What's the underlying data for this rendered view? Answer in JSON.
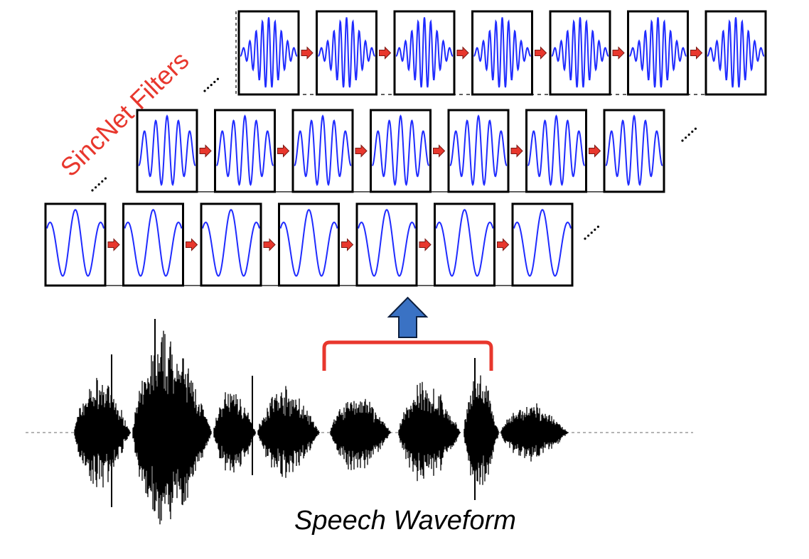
{
  "diagram": {
    "side_title": "SincNet Filters",
    "caption": "Speech Waveform",
    "ellipsis_glyph": "....",
    "colors": {
      "filter_line": "#1f2bff",
      "arrow_red": "#e8372d",
      "bracket_red": "#e8372d",
      "up_arrow_fill": "#3a72c4",
      "waveform": "#000000",
      "frame_border": "#000000"
    },
    "rows": [
      {
        "name": "row-low-frequency",
        "filter_count": 7,
        "frequency": "low"
      },
      {
        "name": "row-mid-frequency",
        "filter_count": 7,
        "frequency": "mid"
      },
      {
        "name": "row-high-frequency",
        "filter_count": 7,
        "frequency": "high"
      }
    ],
    "icons": [
      "right-arrow-icon",
      "up-arrow-icon",
      "bracket-icon"
    ]
  }
}
